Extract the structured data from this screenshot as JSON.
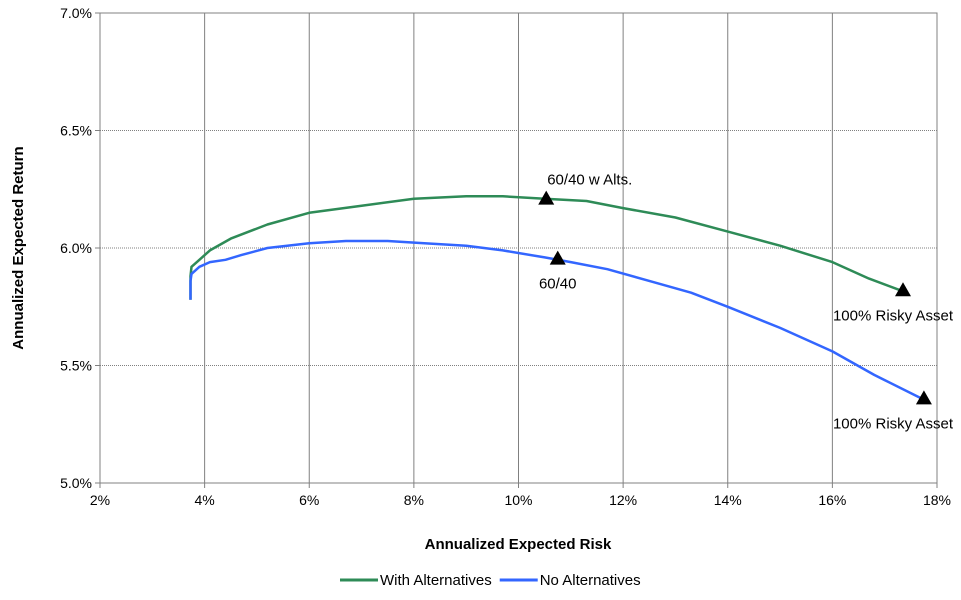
{
  "chart_data": {
    "type": "line",
    "xlabel": "Annualized Expected Risk",
    "ylabel": "Annualized Expected Return",
    "xlim": [
      0.02,
      0.18
    ],
    "ylim": [
      0.05,
      0.07
    ],
    "x_ticks": [
      0.02,
      0.04,
      0.06,
      0.08,
      0.1,
      0.12,
      0.14,
      0.16,
      0.18
    ],
    "x_tick_labels": [
      "2%",
      "4%",
      "6%",
      "8%",
      "10%",
      "12%",
      "14%",
      "16%",
      "18%"
    ],
    "y_ticks": [
      0.05,
      0.055,
      0.06,
      0.065,
      0.07
    ],
    "y_tick_labels": [
      "5.0%",
      "5.5%",
      "6.0%",
      "6.5%",
      "7.0%"
    ],
    "grid": true,
    "legend_position": "bottom",
    "series": [
      {
        "name": "With Alternatives",
        "color": "#2e8b57",
        "points": [
          [
            0.0373,
            0.0578
          ],
          [
            0.0373,
            0.0588
          ],
          [
            0.0375,
            0.0592
          ],
          [
            0.039,
            0.0595
          ],
          [
            0.041,
            0.0599
          ],
          [
            0.045,
            0.0604
          ],
          [
            0.052,
            0.061
          ],
          [
            0.06,
            0.0615
          ],
          [
            0.07,
            0.0618
          ],
          [
            0.08,
            0.0621
          ],
          [
            0.09,
            0.0622
          ],
          [
            0.097,
            0.0622
          ],
          [
            0.105,
            0.0621
          ],
          [
            0.113,
            0.062
          ],
          [
            0.12,
            0.0617
          ],
          [
            0.13,
            0.0613
          ],
          [
            0.14,
            0.0607
          ],
          [
            0.15,
            0.0601
          ],
          [
            0.16,
            0.0594
          ],
          [
            0.167,
            0.0587
          ],
          [
            0.173,
            0.0582
          ]
        ]
      },
      {
        "name": "No Alternatives",
        "color": "#3366ff",
        "points": [
          [
            0.0373,
            0.0578
          ],
          [
            0.0373,
            0.0586
          ],
          [
            0.0375,
            0.0589
          ],
          [
            0.039,
            0.0592
          ],
          [
            0.041,
            0.0594
          ],
          [
            0.044,
            0.0595
          ],
          [
            0.047,
            0.0597
          ],
          [
            0.052,
            0.06
          ],
          [
            0.06,
            0.0602
          ],
          [
            0.067,
            0.0603
          ],
          [
            0.075,
            0.0603
          ],
          [
            0.082,
            0.0602
          ],
          [
            0.09,
            0.0601
          ],
          [
            0.097,
            0.0599
          ],
          [
            0.105,
            0.0596
          ],
          [
            0.11,
            0.0594
          ],
          [
            0.117,
            0.0591
          ],
          [
            0.125,
            0.0586
          ],
          [
            0.133,
            0.0581
          ],
          [
            0.14,
            0.0575
          ],
          [
            0.15,
            0.0566
          ],
          [
            0.16,
            0.0556
          ],
          [
            0.168,
            0.0546
          ],
          [
            0.177,
            0.0536
          ]
        ]
      }
    ],
    "markers": [
      {
        "x": 0.1053,
        "y": 0.0621,
        "label": "60/40 w Alts.",
        "label_pos": "above-right"
      },
      {
        "x": 0.1075,
        "y": 0.05955,
        "label": "60/40",
        "label_pos": "below"
      },
      {
        "x": 0.1735,
        "y": 0.0582,
        "label": "100% Risky Asset",
        "label_pos": "below"
      },
      {
        "x": 0.1775,
        "y": 0.0536,
        "label": "100% Risky Asset",
        "label_pos": "below"
      }
    ]
  }
}
